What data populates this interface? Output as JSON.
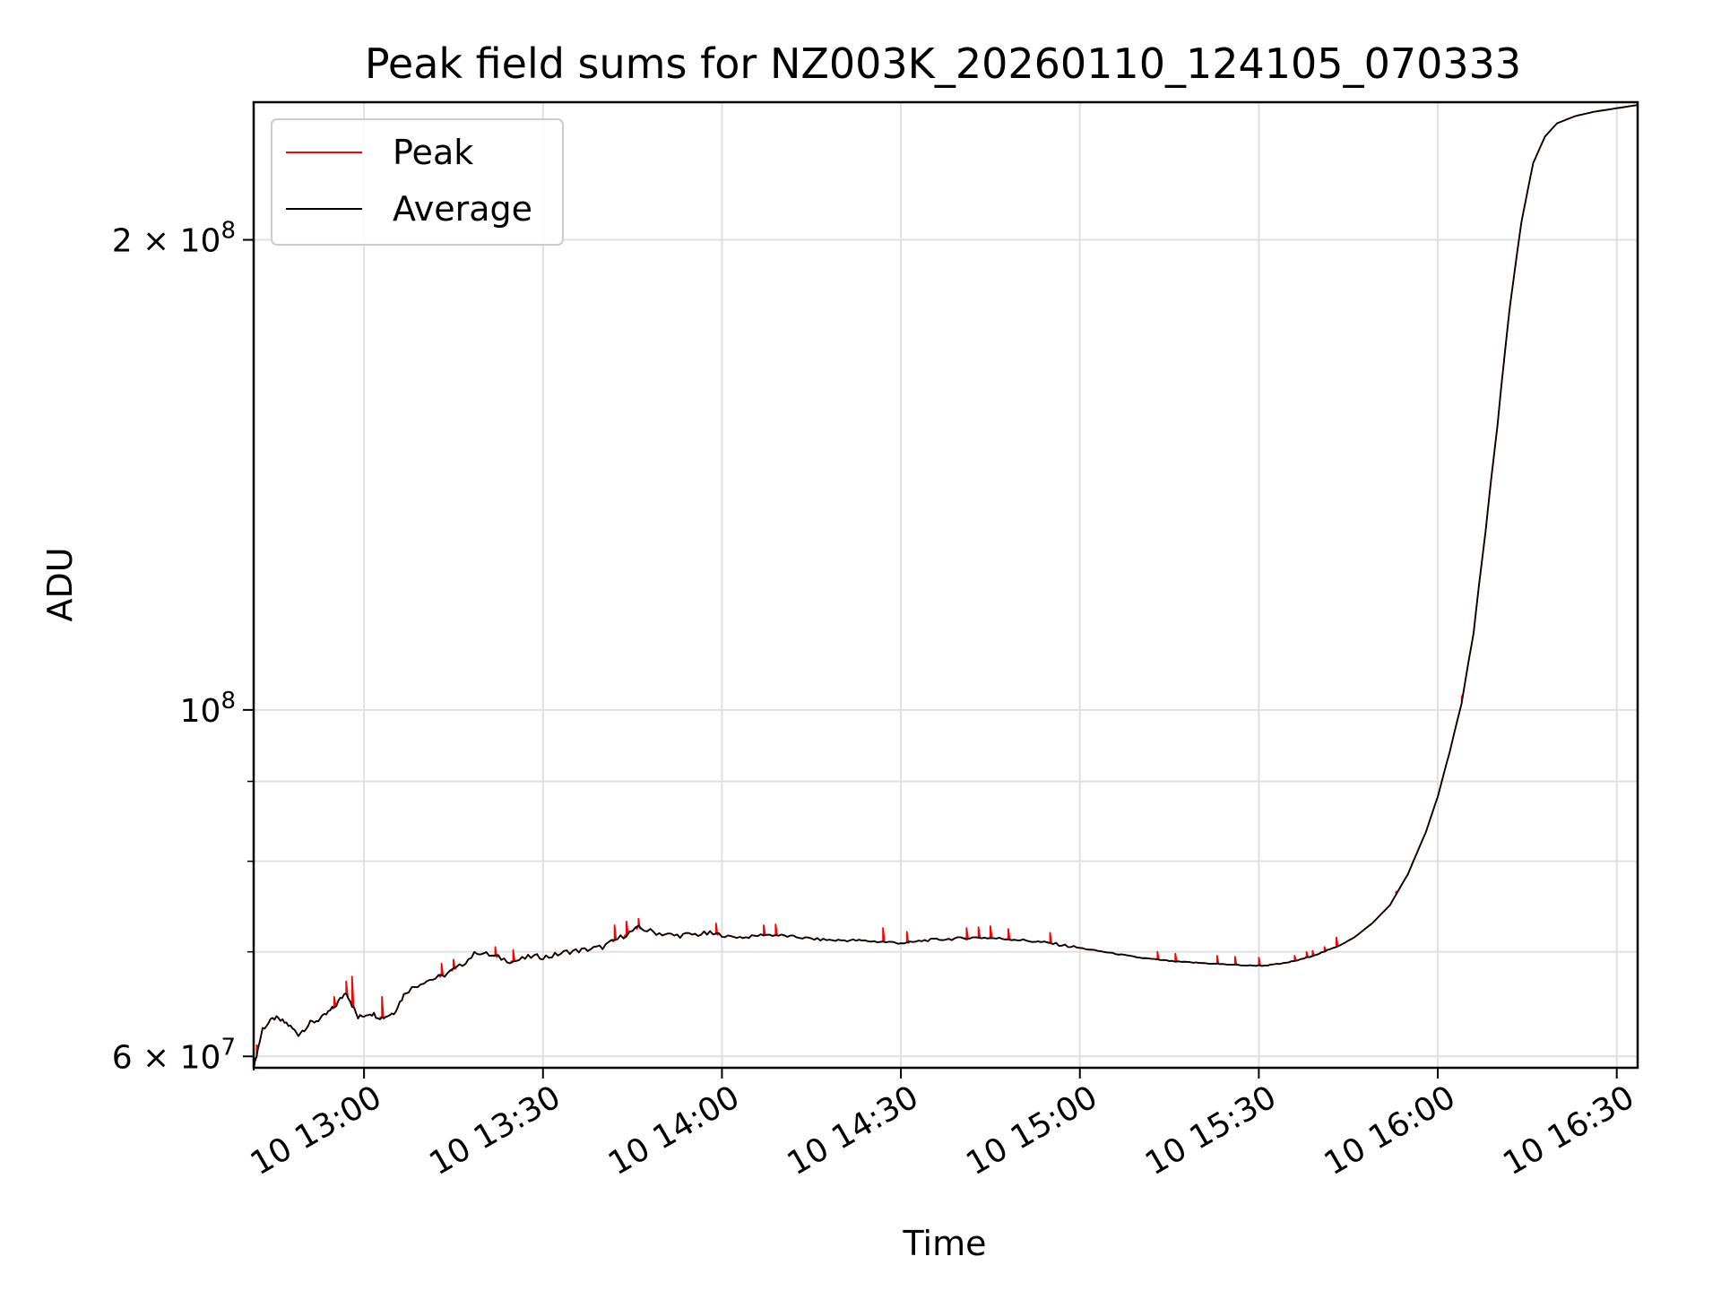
{
  "chart_data": {
    "type": "line",
    "title": "Peak field sums for NZ003K_20260110_124105_070333",
    "xlabel": "Time",
    "ylabel": "ADU",
    "y_scale": "log",
    "ylim": [
      59000000,
      245000000
    ],
    "xlim": [
      "12:41:30",
      "16:33:30"
    ],
    "grid": true,
    "legend_position": "top-left",
    "x_ticks": [
      {
        "value": "13:00",
        "label": "10 13:00"
      },
      {
        "value": "13:30",
        "label": "10 13:30"
      },
      {
        "value": "14:00",
        "label": "10 14:00"
      },
      {
        "value": "14:30",
        "label": "10 14:30"
      },
      {
        "value": "15:00",
        "label": "10 15:00"
      },
      {
        "value": "15:30",
        "label": "10 15:30"
      },
      {
        "value": "16:00",
        "label": "10 16:00"
      },
      {
        "value": "16:30",
        "label": "10 16:30"
      }
    ],
    "y_ticks": [
      {
        "value": 60000000,
        "label_base": "6 × 10",
        "label_exp": "7"
      },
      {
        "value": 100000000,
        "label_base": "10",
        "label_exp": "8"
      },
      {
        "value": 200000000,
        "label_base": "2 × 10",
        "label_exp": "8"
      }
    ],
    "y_minor_ticks": [
      70000000,
      80000000,
      90000000
    ],
    "series": [
      {
        "name": "Average",
        "color": "#000000",
        "points": [
          [
            "12:41:30",
            59000000
          ],
          [
            "12:43",
            62500000
          ],
          [
            "12:45",
            63500000
          ],
          [
            "12:47",
            63000000
          ],
          [
            "12:49",
            62000000
          ],
          [
            "12:51",
            63000000
          ],
          [
            "12:53",
            63500000
          ],
          [
            "12:55",
            64500000
          ],
          [
            "12:57",
            66000000
          ],
          [
            "12:59",
            63500000
          ],
          [
            "13:01",
            64000000
          ],
          [
            "13:03",
            63500000
          ],
          [
            "13:05",
            64000000
          ],
          [
            "13:07",
            66000000
          ],
          [
            "13:10",
            67000000
          ],
          [
            "13:13",
            67500000
          ],
          [
            "13:16",
            68500000
          ],
          [
            "13:19",
            70000000
          ],
          [
            "13:22",
            69500000
          ],
          [
            "13:25",
            69000000
          ],
          [
            "13:28",
            69500000
          ],
          [
            "13:31",
            69500000
          ],
          [
            "13:34",
            70000000
          ],
          [
            "13:37",
            70200000
          ],
          [
            "13:40",
            70500000
          ],
          [
            "13:43",
            71500000
          ],
          [
            "13:46",
            72500000
          ],
          [
            "13:49",
            72000000
          ],
          [
            "13:52",
            71700000
          ],
          [
            "13:55",
            71800000
          ],
          [
            "13:58",
            71900000
          ],
          [
            "14:01",
            71600000
          ],
          [
            "14:04",
            71500000
          ],
          [
            "14:07",
            71800000
          ],
          [
            "14:10",
            71700000
          ],
          [
            "14:13",
            71500000
          ],
          [
            "14:16",
            71300000
          ],
          [
            "14:19",
            71200000
          ],
          [
            "14:22",
            71200000
          ],
          [
            "14:25",
            71100000
          ],
          [
            "14:28",
            71000000
          ],
          [
            "14:31",
            70900000
          ],
          [
            "14:34",
            71200000
          ],
          [
            "14:37",
            71300000
          ],
          [
            "14:40",
            71400000
          ],
          [
            "14:43",
            71500000
          ],
          [
            "14:46",
            71400000
          ],
          [
            "14:49",
            71300000
          ],
          [
            "14:52",
            71100000
          ],
          [
            "14:55",
            70900000
          ],
          [
            "14:58",
            70600000
          ],
          [
            "15:01",
            70300000
          ],
          [
            "15:04",
            70000000
          ],
          [
            "15:07",
            69700000
          ],
          [
            "15:10",
            69400000
          ],
          [
            "15:13",
            69200000
          ],
          [
            "15:16",
            69000000
          ],
          [
            "15:19",
            68900000
          ],
          [
            "15:22",
            68800000
          ],
          [
            "15:25",
            68700000
          ],
          [
            "15:28",
            68600000
          ],
          [
            "15:31",
            68600000
          ],
          [
            "15:34",
            68800000
          ],
          [
            "15:37",
            69200000
          ],
          [
            "15:40",
            69800000
          ],
          [
            "15:43",
            70500000
          ],
          [
            "15:46",
            71500000
          ],
          [
            "15:49",
            73000000
          ],
          [
            "15:52",
            75000000
          ],
          [
            "15:55",
            78500000
          ],
          [
            "15:58",
            83500000
          ],
          [
            "16:00",
            88000000
          ],
          [
            "16:02",
            94000000
          ],
          [
            "16:04",
            101000000
          ],
          [
            "16:06",
            112000000
          ],
          [
            "16:08",
            130000000
          ],
          [
            "16:10",
            152000000
          ],
          [
            "16:12",
            180000000
          ],
          [
            "16:14",
            205000000
          ],
          [
            "16:16",
            224000000
          ],
          [
            "16:18",
            233000000
          ],
          [
            "16:20",
            237500000
          ],
          [
            "16:23",
            240000000
          ],
          [
            "16:26",
            241500000
          ],
          [
            "16:29",
            242500000
          ],
          [
            "16:32",
            243500000
          ],
          [
            "16:33:30",
            244000000
          ]
        ]
      },
      {
        "name": "Peak",
        "color": "#ff0000",
        "spikes": [
          [
            "12:42",
            61000000
          ],
          [
            "12:55",
            65500000
          ],
          [
            "12:57",
            67000000
          ],
          [
            "12:58",
            67500000
          ],
          [
            "13:03",
            65500000
          ],
          [
            "13:13",
            68800000
          ],
          [
            "13:15",
            69200000
          ],
          [
            "13:22",
            70500000
          ],
          [
            "13:25",
            70200000
          ],
          [
            "13:42",
            72800000
          ],
          [
            "13:44",
            73200000
          ],
          [
            "13:46",
            73500000
          ],
          [
            "13:59",
            73000000
          ],
          [
            "14:07",
            72800000
          ],
          [
            "14:09",
            72900000
          ],
          [
            "14:27",
            72500000
          ],
          [
            "14:31",
            72100000
          ],
          [
            "14:41",
            72500000
          ],
          [
            "14:43",
            72600000
          ],
          [
            "14:45",
            72700000
          ],
          [
            "14:48",
            72400000
          ],
          [
            "14:55",
            72000000
          ],
          [
            "15:13",
            70000000
          ],
          [
            "15:16",
            69800000
          ],
          [
            "15:23",
            69600000
          ],
          [
            "15:26",
            69500000
          ],
          [
            "15:30",
            69400000
          ],
          [
            "15:36",
            69600000
          ],
          [
            "15:38",
            70000000
          ],
          [
            "15:39",
            70100000
          ],
          [
            "15:41",
            70500000
          ],
          [
            "15:43",
            71500000
          ],
          [
            "15:53",
            76500000
          ],
          [
            "16:04",
            102000000
          ]
        ]
      }
    ]
  }
}
